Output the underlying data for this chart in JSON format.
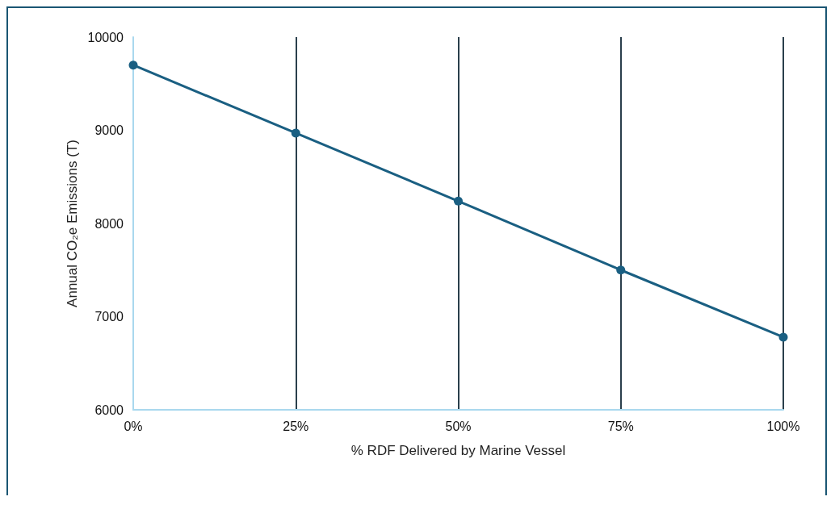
{
  "chart_data": {
    "type": "line",
    "xlabel": "% RDF Delivered by Marine Vessel",
    "ylabel": "Annual CO₂e Emissions (T)",
    "x": [
      0,
      25,
      50,
      75,
      100
    ],
    "series": [
      {
        "color": "#1a5f82",
        "values": [
          9700,
          8970,
          8240,
          7500,
          6780
        ]
      }
    ],
    "xlim": [
      0,
      100
    ],
    "xticks": [
      {
        "value": 0,
        "label": "0%"
      },
      {
        "value": 25,
        "label": "25%"
      },
      {
        "value": 50,
        "label": "50%"
      },
      {
        "value": 75,
        "label": "75%"
      },
      {
        "value": 100,
        "label": "100%"
      }
    ],
    "ylim": [
      6000,
      10000
    ],
    "yticks": [
      6000,
      7000,
      8000,
      9000,
      10000
    ],
    "grid": "x",
    "marker": "circle",
    "line_style": "solid"
  }
}
